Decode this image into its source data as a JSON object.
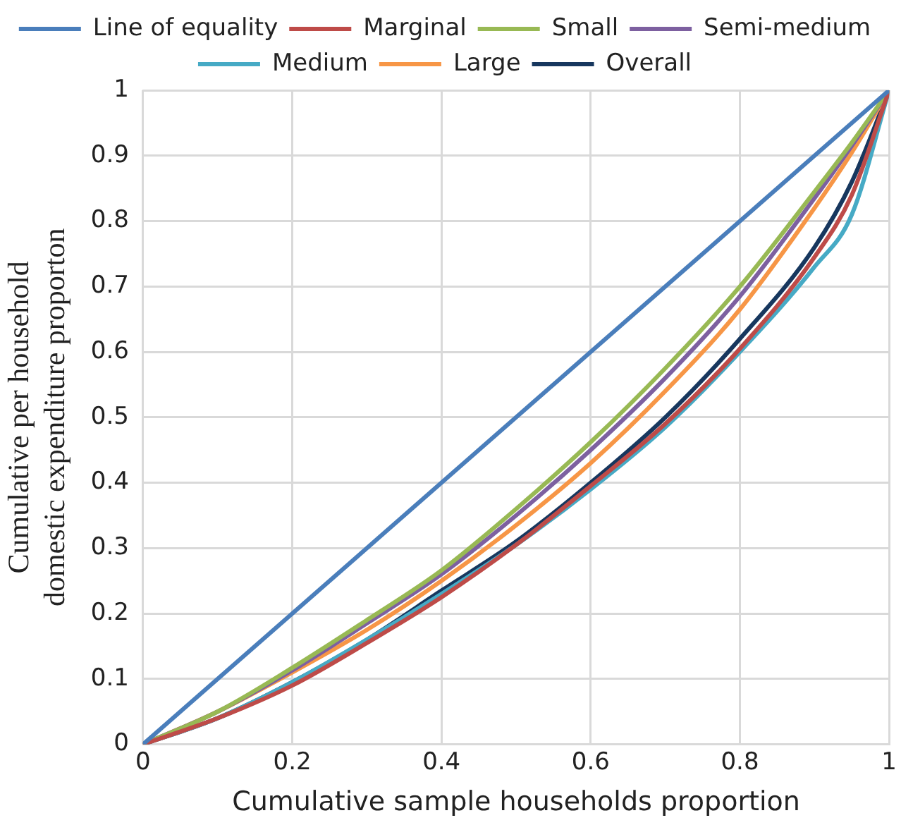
{
  "chart_data": {
    "type": "line",
    "xlabel": "Cumulative sample households proportion",
    "ylabel": "Cumulative per household domestic expenditure proporton",
    "x": [
      0,
      0.1,
      0.2,
      0.3,
      0.4,
      0.5,
      0.6,
      0.7,
      0.8,
      0.9,
      0.95,
      1
    ],
    "series": [
      {
        "name": "Line of equality",
        "color": "#4a7ebb",
        "x": [
          0,
          1
        ],
        "values": [
          0,
          1
        ]
      },
      {
        "name": "Marginal",
        "color": "#be4b48",
        "values": [
          0,
          0.04,
          0.09,
          0.155,
          0.225,
          0.305,
          0.395,
          0.49,
          0.605,
          0.745,
          0.84,
          1
        ]
      },
      {
        "name": "Small",
        "color": "#98b954",
        "values": [
          0,
          0.05,
          0.117,
          0.19,
          0.266,
          0.36,
          0.462,
          0.575,
          0.7,
          0.845,
          0.92,
          1
        ]
      },
      {
        "name": "Semi-medium",
        "color": "#7d60a0",
        "values": [
          0,
          0.05,
          0.113,
          0.185,
          0.26,
          0.35,
          0.45,
          0.56,
          0.685,
          0.835,
          0.915,
          1
        ]
      },
      {
        "name": "Medium",
        "color": "#46aac5",
        "values": [
          0,
          0.04,
          0.095,
          0.16,
          0.23,
          0.305,
          0.39,
          0.485,
          0.6,
          0.73,
          0.81,
          1
        ]
      },
      {
        "name": "Large",
        "color": "#f79646",
        "values": [
          0,
          0.05,
          0.11,
          0.175,
          0.25,
          0.335,
          0.43,
          0.54,
          0.665,
          0.82,
          0.905,
          1
        ]
      },
      {
        "name": "Overall",
        "color": "#17375e",
        "values": [
          0,
          0.04,
          0.095,
          0.16,
          0.235,
          0.31,
          0.4,
          0.5,
          0.62,
          0.76,
          0.86,
          1
        ]
      }
    ],
    "xlim": [
      0,
      1
    ],
    "xticks": [
      0,
      0.2,
      0.4,
      0.6,
      0.8,
      1
    ],
    "ylim": [
      0,
      1
    ],
    "yticks": [
      0,
      0.1,
      0.2,
      0.3,
      0.4,
      0.5,
      0.6,
      0.7,
      0.8,
      0.9,
      1
    ],
    "grid": true,
    "legend": "top",
    "marker": "none",
    "line_style": "solid"
  }
}
